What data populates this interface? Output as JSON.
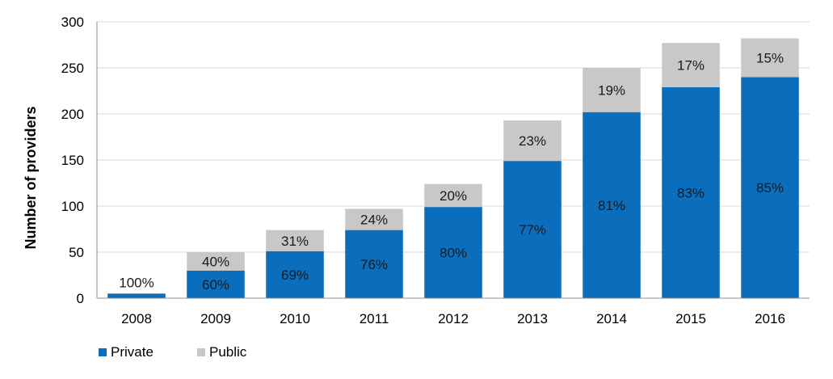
{
  "chart_data": {
    "type": "bar",
    "stacked": true,
    "title": "",
    "xlabel": "",
    "ylabel": "Number of providers",
    "ylim": [
      0,
      300
    ],
    "yticks": [
      0,
      50,
      100,
      150,
      200,
      250,
      300
    ],
    "categories": [
      "2008",
      "2009",
      "2010",
      "2011",
      "2012",
      "2013",
      "2014",
      "2015",
      "2016"
    ],
    "series": [
      {
        "name": "Private",
        "color": "#0a6ebd",
        "values": [
          5,
          30,
          51,
          74,
          99,
          149,
          202,
          229,
          240
        ],
        "labels": [
          "100%",
          "60%",
          "69%",
          "76%",
          "80%",
          "77%",
          "81%",
          "83%",
          "85%"
        ]
      },
      {
        "name": "Public",
        "color": "#c8c8c8",
        "values": [
          0,
          20,
          23,
          23,
          25,
          44,
          48,
          48,
          42
        ],
        "labels": [
          "",
          "40%",
          "31%",
          "24%",
          "20%",
          "23%",
          "19%",
          "17%",
          "15%"
        ]
      }
    ],
    "gridlines": true,
    "legend": "bottom-left"
  }
}
